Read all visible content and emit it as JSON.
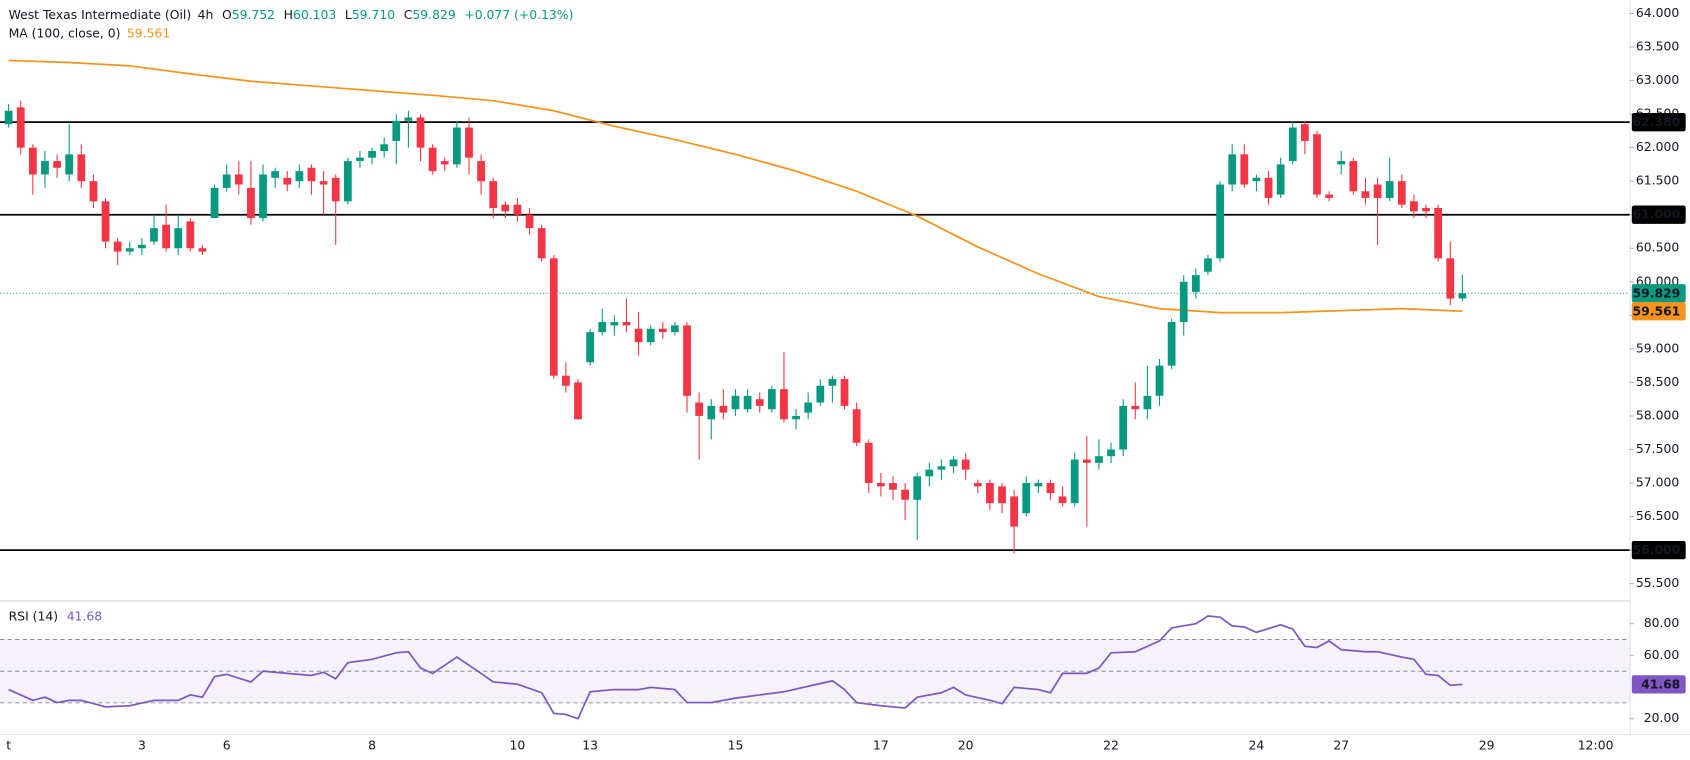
{
  "chart_data": [
    {
      "type": "candlestick",
      "title": "West Texas Intermediate (Oil)",
      "interval": "4h",
      "ohlc_labels": [
        "O",
        "H",
        "L",
        "C"
      ],
      "ohlc_values": [
        "59.752",
        "60.103",
        "59.710",
        "59.829"
      ],
      "change": "+0.077 (+0.13%)",
      "up_color": "#089981",
      "down_color": "#f23645",
      "categories": [
        "t",
        null,
        null,
        null,
        null,
        null,
        null,
        null,
        null,
        null,
        null,
        "3",
        null,
        null,
        null,
        null,
        null,
        null,
        "6",
        null,
        null,
        null,
        null,
        null,
        null,
        null,
        null,
        null,
        null,
        null,
        "8",
        null,
        null,
        null,
        null,
        null,
        null,
        null,
        null,
        null,
        null,
        null,
        "10",
        null,
        null,
        null,
        null,
        null,
        "13",
        null,
        null,
        null,
        null,
        null,
        null,
        null,
        null,
        null,
        null,
        null,
        "15",
        null,
        null,
        null,
        null,
        null,
        null,
        null,
        null,
        null,
        null,
        null,
        "17",
        null,
        null,
        null,
        null,
        null,
        null,
        "20",
        null,
        null,
        null,
        null,
        null,
        null,
        null,
        null,
        null,
        null,
        null,
        "22",
        null,
        null,
        null,
        null,
        null,
        null,
        null,
        null,
        null,
        null,
        null,
        "24",
        null,
        null,
        null,
        null,
        null,
        null,
        "27",
        null,
        null,
        null,
        null,
        null,
        null,
        null,
        null,
        null,
        null,
        null,
        "29",
        null,
        null,
        null,
        null,
        null,
        null,
        null,
        null,
        "12:00"
      ],
      "open": [
        62.35,
        62.6,
        62.0,
        61.6,
        61.8,
        61.6,
        61.9,
        61.5,
        61.2,
        60.6,
        60.45,
        60.5,
        60.6,
        60.85,
        60.5,
        60.9,
        60.5,
        60.95,
        61.4,
        61.6,
        61.4,
        60.95,
        61.55,
        61.55,
        61.5,
        61.7,
        61.5,
        61.55,
        61.2,
        61.8,
        61.85,
        61.95,
        62.1,
        62.4,
        62.45,
        62.0,
        61.8,
        61.75,
        62.3,
        61.8,
        61.5,
        61.15,
        61.15,
        61.0,
        60.8,
        60.35,
        58.6,
        58.5,
        58.8,
        59.25,
        59.35,
        59.4,
        59.3,
        59.1,
        59.3,
        59.25,
        59.35,
        58.2,
        57.95,
        58.15,
        58.1,
        58.1,
        58.25,
        58.1,
        58.4,
        57.95,
        58.05,
        58.2,
        58.45,
        58.55,
        58.1,
        57.6,
        57.0,
        57.0,
        56.9,
        56.75,
        57.1,
        57.2,
        57.25,
        57.35,
        57.0,
        57.0,
        56.95,
        56.8,
        56.55,
        56.95,
        57.0,
        56.8,
        56.7,
        57.35,
        57.3,
        57.4,
        57.5,
        58.15,
        58.1,
        58.3,
        58.75,
        59.4,
        59.85,
        60.15,
        60.35,
        61.45,
        61.9,
        61.5,
        61.55,
        61.3,
        61.8,
        62.35,
        62.2,
        61.3,
        61.75,
        61.8,
        61.35,
        61.45,
        61.25,
        61.5,
        61.2,
        61.1,
        61.1,
        60.35,
        59.752,
        null,
        null,
        null,
        null,
        null,
        null,
        null,
        null,
        null,
        null,
        null
      ],
      "high": [
        62.65,
        62.7,
        62.05,
        61.95,
        61.9,
        62.35,
        62.05,
        61.6,
        61.25,
        60.65,
        60.6,
        60.65,
        61.0,
        61.15,
        61.0,
        60.95,
        60.55,
        61.45,
        61.75,
        61.8,
        61.8,
        61.75,
        61.7,
        61.65,
        61.75,
        61.75,
        61.65,
        61.6,
        61.85,
        61.95,
        62.0,
        62.15,
        62.5,
        62.55,
        62.5,
        62.05,
        61.85,
        62.4,
        62.45,
        61.9,
        61.55,
        61.2,
        61.25,
        61.1,
        60.85,
        60.4,
        58.8,
        58.55,
        59.3,
        59.6,
        59.5,
        59.75,
        59.55,
        59.35,
        59.4,
        59.4,
        59.4,
        58.35,
        58.25,
        58.4,
        58.4,
        58.4,
        58.35,
        58.45,
        58.95,
        58.1,
        58.35,
        58.55,
        58.6,
        58.6,
        58.2,
        57.65,
        57.15,
        57.1,
        57.0,
        57.15,
        57.3,
        57.35,
        57.4,
        57.45,
        57.05,
        57.05,
        57.0,
        56.9,
        57.1,
        57.05,
        57.05,
        56.95,
        57.45,
        57.7,
        57.65,
        57.6,
        58.25,
        58.5,
        58.75,
        58.85,
        59.45,
        60.1,
        60.2,
        60.4,
        61.5,
        62.05,
        62.05,
        61.6,
        61.65,
        61.85,
        62.4,
        62.4,
        62.25,
        61.35,
        61.95,
        61.85,
        61.55,
        61.55,
        61.85,
        61.6,
        61.3,
        61.15,
        61.15,
        60.6,
        60.103,
        null,
        null,
        null,
        null,
        null,
        null,
        null,
        null,
        null,
        null,
        null
      ],
      "low": [
        62.3,
        61.9,
        61.3,
        61.4,
        61.55,
        61.5,
        61.4,
        61.1,
        60.5,
        60.25,
        60.4,
        60.4,
        60.55,
        60.45,
        60.4,
        60.45,
        60.4,
        60.95,
        61.35,
        61.3,
        60.85,
        60.9,
        61.4,
        61.35,
        61.4,
        61.3,
        61.0,
        60.55,
        61.15,
        61.7,
        61.75,
        61.85,
        61.75,
        62.0,
        61.8,
        61.6,
        61.65,
        61.7,
        61.6,
        61.3,
        60.95,
        60.95,
        60.9,
        60.7,
        60.3,
        58.55,
        58.35,
        57.95,
        58.75,
        59.2,
        59.2,
        59.25,
        58.9,
        59.05,
        59.15,
        59.2,
        58.05,
        57.35,
        57.65,
        57.95,
        58.0,
        58.05,
        58.05,
        58.05,
        57.9,
        57.8,
        57.95,
        58.15,
        58.2,
        58.1,
        57.55,
        56.85,
        56.8,
        56.75,
        56.45,
        56.15,
        56.95,
        57.05,
        57.15,
        57.05,
        56.85,
        56.6,
        56.55,
        55.95,
        56.5,
        56.85,
        56.75,
        56.65,
        56.65,
        56.35,
        57.2,
        57.3,
        57.4,
        57.95,
        57.95,
        58.15,
        58.7,
        59.2,
        59.75,
        60.1,
        60.3,
        61.35,
        61.4,
        61.35,
        61.15,
        61.25,
        61.75,
        61.9,
        61.25,
        61.2,
        61.6,
        61.3,
        61.15,
        60.55,
        61.2,
        61.1,
        60.95,
        60.95,
        60.3,
        59.65,
        59.71,
        null,
        null,
        null,
        null,
        null,
        null,
        null,
        null,
        null,
        null,
        null
      ],
      "close": [
        62.55,
        62.0,
        61.6,
        61.8,
        61.7,
        61.9,
        61.5,
        61.2,
        60.6,
        60.45,
        60.5,
        60.55,
        60.8,
        60.5,
        60.8,
        60.5,
        60.45,
        61.4,
        61.6,
        61.45,
        60.95,
        61.6,
        61.65,
        61.45,
        61.65,
        61.5,
        61.45,
        61.2,
        61.8,
        61.85,
        61.95,
        62.05,
        62.4,
        62.45,
        62.0,
        61.65,
        61.75,
        62.3,
        61.85,
        61.5,
        61.1,
        61.05,
        61.0,
        60.8,
        60.35,
        58.6,
        58.45,
        57.95,
        59.25,
        59.4,
        59.4,
        59.35,
        59.1,
        59.3,
        59.25,
        59.35,
        58.3,
        58.0,
        58.15,
        58.05,
        58.3,
        58.3,
        58.15,
        58.4,
        57.95,
        58.0,
        58.2,
        58.45,
        58.55,
        58.15,
        57.6,
        57.0,
        56.95,
        56.9,
        56.75,
        57.1,
        57.2,
        57.25,
        57.35,
        57.2,
        56.95,
        56.7,
        56.7,
        56.35,
        57.0,
        57.0,
        56.85,
        56.7,
        57.35,
        57.3,
        57.4,
        57.5,
        58.15,
        58.1,
        58.3,
        58.75,
        59.4,
        60.0,
        60.1,
        60.35,
        61.45,
        61.9,
        61.45,
        61.55,
        61.25,
        61.75,
        62.3,
        62.1,
        61.3,
        61.25,
        61.8,
        61.35,
        61.25,
        61.25,
        61.5,
        61.15,
        61.05,
        61.05,
        60.35,
        59.75,
        59.829,
        null,
        null,
        null,
        null,
        null,
        null,
        null,
        null,
        null,
        null,
        null
      ],
      "overlays": [
        {
          "name": "MA (100, close, 0)",
          "color": "#f7931a",
          "value_label": "59.561",
          "x": [
            0,
            5,
            10,
            15,
            20,
            25,
            30,
            35,
            40,
            45,
            50,
            55,
            60,
            65,
            70,
            75,
            80,
            85,
            90,
            95,
            100,
            105,
            110,
            115,
            120
          ],
          "values": [
            63.3,
            63.27,
            63.22,
            63.1,
            62.99,
            62.92,
            62.85,
            62.78,
            62.7,
            62.55,
            62.32,
            62.12,
            61.9,
            61.65,
            61.35,
            60.98,
            60.52,
            60.12,
            59.78,
            59.6,
            59.54,
            59.54,
            59.57,
            59.6,
            59.561
          ]
        }
      ],
      "levels": [
        {
          "value": 62.38,
          "label": "62.380"
        },
        {
          "value": 61.0,
          "label": "61.000"
        },
        {
          "value": 56.0,
          "label": "56.000"
        }
      ],
      "last_price": {
        "value": 59.829,
        "label": "59.829"
      },
      "ylim": [
        55.25,
        64.2
      ],
      "yticks": [
        {
          "value": 55.5,
          "label": "55.500"
        },
        {
          "value": 56.0,
          "label": "56.000"
        },
        {
          "value": 56.5,
          "label": "56.500"
        },
        {
          "value": 57.0,
          "label": "57.000"
        },
        {
          "value": 57.5,
          "label": "57.500"
        },
        {
          "value": 58.0,
          "label": "58.000"
        },
        {
          "value": 58.5,
          "label": "58.500"
        },
        {
          "value": 59.0,
          "label": "59.000"
        },
        {
          "value": 59.5,
          "label": "59.500"
        },
        {
          "value": 60.0,
          "label": "60.000"
        },
        {
          "value": 60.5,
          "label": "60.500"
        },
        {
          "value": 61.0,
          "label": "61.000"
        },
        {
          "value": 61.5,
          "label": "61.500"
        },
        {
          "value": 62.0,
          "label": "62.000"
        },
        {
          "value": 62.5,
          "label": "62.500"
        },
        {
          "value": 63.0,
          "label": "63.000"
        },
        {
          "value": 63.5,
          "label": "63.500"
        },
        {
          "value": 64.0,
          "label": "64.000"
        }
      ]
    },
    {
      "type": "line",
      "title": "RSI (14)",
      "value_label": "41.68",
      "color": "#7e57c2",
      "band_color": "#7e57c2",
      "bands": [
        30,
        50,
        70
      ],
      "x": [
        0,
        1,
        2,
        3,
        4,
        5,
        6,
        8,
        10,
        12,
        14,
        15,
        16,
        17,
        18,
        20,
        21,
        23,
        25,
        26,
        27,
        28,
        30,
        32,
        33,
        34,
        35,
        37,
        39,
        40,
        42,
        44,
        45,
        46,
        47,
        48,
        50,
        52,
        53,
        55,
        56,
        58,
        60,
        62,
        64,
        66,
        68,
        69,
        70,
        72,
        74,
        75,
        77,
        78,
        79,
        81,
        82,
        83,
        85,
        86,
        87,
        89,
        90,
        91,
        93,
        95,
        96,
        98,
        99,
        100,
        101,
        102,
        103,
        105,
        106,
        107,
        108,
        109,
        110,
        112,
        113,
        115,
        116,
        117,
        118,
        119,
        120
      ],
      "values": [
        38.4,
        35,
        31.6,
        33.6,
        30.2,
        31.6,
        31.6,
        27.5,
        28.2,
        31.6,
        31.6,
        35,
        33.6,
        46.6,
        48,
        43.2,
        50,
        48.6,
        47.3,
        49.3,
        45.2,
        55.4,
        57.5,
        61.6,
        62.3,
        52,
        48.6,
        58.9,
        48.6,
        43.2,
        41.8,
        36.4,
        23.4,
        22.7,
        20,
        37,
        38.4,
        38.4,
        39.8,
        38.4,
        30.2,
        30.2,
        33,
        35,
        37,
        40.5,
        43.9,
        38.4,
        30.2,
        28.2,
        26.8,
        33.6,
        36.4,
        39.8,
        35,
        31.6,
        29.5,
        39.8,
        38.4,
        36.4,
        48.6,
        48.6,
        52,
        61.6,
        62.3,
        69.1,
        77.3,
        80,
        84.8,
        84.1,
        78.6,
        77.9,
        74.5,
        79.3,
        76.6,
        65.7,
        65,
        69.1,
        63.6,
        62.3,
        62.3,
        58.9,
        57.5,
        48,
        47.3,
        41.1,
        41.68
      ],
      "ylim": [
        11,
        94
      ],
      "yticks": [
        {
          "value": 20,
          "label": "20.00"
        },
        {
          "value": 60,
          "label": "60.00"
        },
        {
          "value": 80,
          "label": "80.00"
        }
      ]
    }
  ]
}
